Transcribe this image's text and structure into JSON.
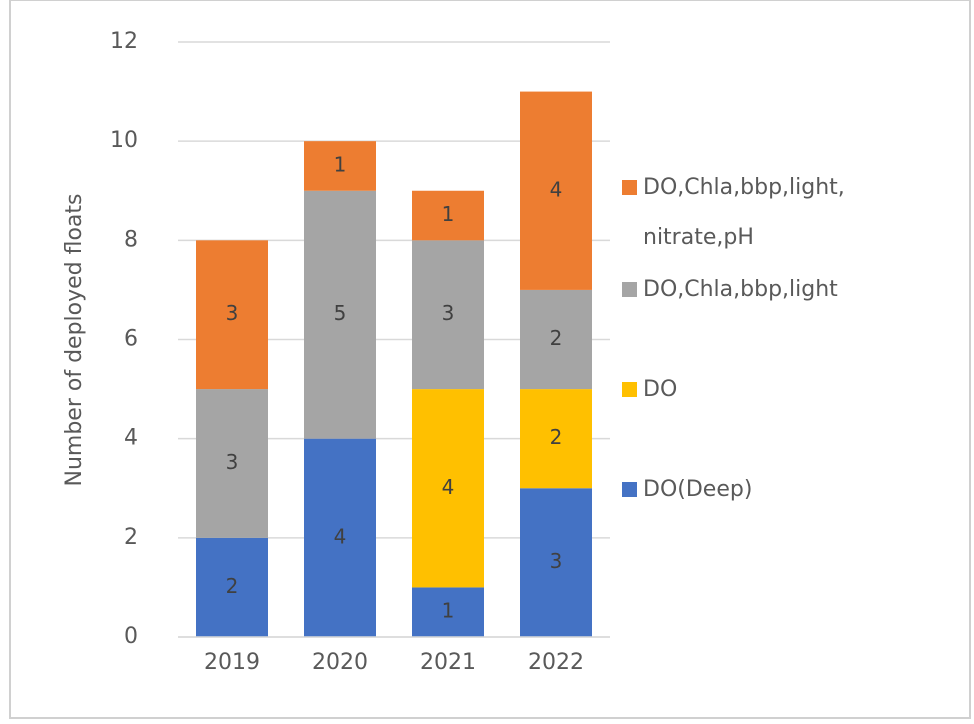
{
  "chart_data": {
    "type": "stacked_bar",
    "y_label": "Number of deployed floats",
    "categories": [
      "2019",
      "2020",
      "2021",
      "2022"
    ],
    "series": [
      {
        "name": "DO(Deep)",
        "color": "#4472c4",
        "values": [
          2,
          4,
          1,
          3
        ]
      },
      {
        "name": "DO",
        "color": "#ffc000",
        "values": [
          0,
          0,
          4,
          2
        ]
      },
      {
        "name": "DO,Chla,bbp,light",
        "color": "#a5a5a5",
        "values": [
          3,
          5,
          3,
          2
        ]
      },
      {
        "name": "DO,Chla,bbp,light,nitrate,pH",
        "color": "#ed7d31",
        "values": [
          3,
          1,
          1,
          4
        ]
      }
    ],
    "ylim": [
      0,
      12
    ],
    "yticks": [
      0,
      2,
      4,
      6,
      8,
      10,
      12
    ],
    "grid": true,
    "legend": "right"
  }
}
